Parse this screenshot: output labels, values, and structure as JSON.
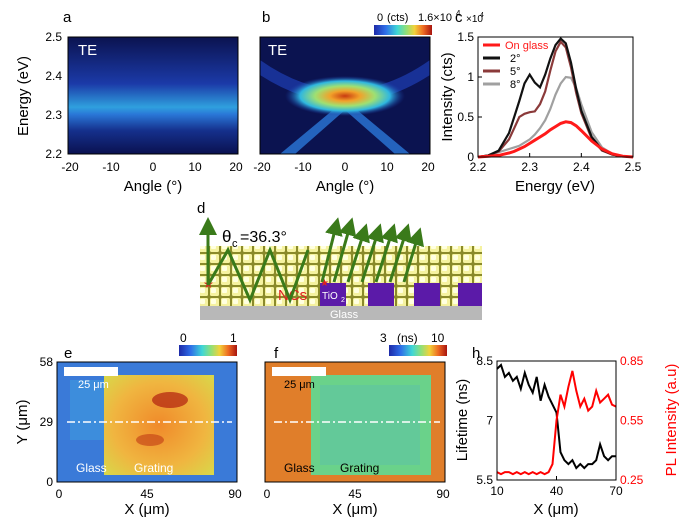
{
  "panel_letters": {
    "a": "a",
    "b": "b",
    "c": "c",
    "d": "d",
    "e": "e",
    "f": "f",
    "h": "h"
  },
  "mode_label": "TE",
  "panel_a": {
    "ylabel": "Energy (eV)",
    "xlabel": "Angle (°)",
    "yticks": [
      "2.5",
      "2.4",
      "2.3",
      "2.2"
    ],
    "xticks": [
      "-20",
      "-10",
      "0",
      "10",
      "20"
    ]
  },
  "panel_b": {
    "xlabel": "Angle (°)",
    "xticks": [
      "-20",
      "-10",
      "0",
      "10",
      "20"
    ],
    "colorbar": {
      "min": "0",
      "unit": "(cts)",
      "max_base": "1.6×10",
      "max_exp": "4"
    }
  },
  "chart_data": [
    {
      "type": "line",
      "panel": "c",
      "xlabel": "Energy (eV)",
      "ylabel": "Intensity (cts)",
      "y_multiplier_base": "×10",
      "y_multiplier_exp": "4",
      "xlim": [
        2.2,
        2.5
      ],
      "ylim": [
        0,
        1.5
      ],
      "xticks": [
        "2.2",
        "2.3",
        "2.4",
        "2.5"
      ],
      "yticks": [
        "0",
        "0.5",
        "1",
        "1.5"
      ],
      "legend_position": "top-left",
      "x": [
        2.2,
        2.22,
        2.24,
        2.26,
        2.27,
        2.28,
        2.29,
        2.3,
        2.31,
        2.32,
        2.33,
        2.34,
        2.35,
        2.36,
        2.37,
        2.38,
        2.39,
        2.4,
        2.42,
        2.44,
        2.46,
        2.48,
        2.5
      ],
      "series": [
        {
          "name": "On glass",
          "color": "#ff1a1a",
          "values": [
            0.0,
            0.01,
            0.02,
            0.05,
            0.07,
            0.1,
            0.13,
            0.17,
            0.21,
            0.25,
            0.29,
            0.34,
            0.38,
            0.42,
            0.44,
            0.43,
            0.39,
            0.33,
            0.2,
            0.1,
            0.04,
            0.01,
            0.0
          ]
        },
        {
          "name": "2°",
          "color": "#111111",
          "values": [
            0.0,
            0.02,
            0.08,
            0.3,
            0.5,
            0.7,
            0.92,
            1.03,
            0.93,
            0.87,
            1.03,
            1.23,
            1.4,
            1.48,
            1.42,
            1.18,
            0.85,
            0.58,
            0.25,
            0.09,
            0.03,
            0.01,
            0.0
          ]
        },
        {
          "name": "5°",
          "color": "#8b3a3a",
          "values": [
            0.0,
            0.02,
            0.07,
            0.22,
            0.36,
            0.5,
            0.54,
            0.56,
            0.57,
            0.66,
            0.82,
            1.08,
            1.32,
            1.44,
            1.37,
            1.12,
            0.8,
            0.55,
            0.23,
            0.08,
            0.03,
            0.01,
            0.0
          ]
        },
        {
          "name": "8°",
          "color": "#a0a0a0",
          "values": [
            0.0,
            0.02,
            0.06,
            0.1,
            0.12,
            0.14,
            0.18,
            0.22,
            0.28,
            0.36,
            0.46,
            0.6,
            0.78,
            0.92,
            1.0,
            0.99,
            0.86,
            0.66,
            0.31,
            0.12,
            0.04,
            0.01,
            0.0
          ]
        }
      ]
    },
    {
      "type": "line",
      "panel": "h",
      "xlabel": "X (μm)",
      "ylabel_left": "Lifetime (ns)",
      "ylabel_right": "PL Intensity (a.u)",
      "xlim": [
        10,
        70
      ],
      "ylim_left": [
        5.5,
        8.5
      ],
      "ylim_right": [
        0.25,
        0.85
      ],
      "xticks": [
        "10",
        "40",
        "70"
      ],
      "yticks_left": [
        "5.5",
        "7",
        "8.5"
      ],
      "yticks_right": [
        "0.25",
        "0.55",
        "0.85"
      ],
      "x": [
        10,
        12,
        14,
        16,
        18,
        20,
        22,
        24,
        26,
        28,
        30,
        32,
        34,
        36,
        38,
        40,
        42,
        44,
        46,
        48,
        50,
        52,
        54,
        56,
        58,
        60,
        62,
        64,
        66,
        68,
        70
      ],
      "series": [
        {
          "name": "Lifetime",
          "axis": "left",
          "color": "#000000",
          "values": [
            8.3,
            8.4,
            8.1,
            8.2,
            8.0,
            8.1,
            7.8,
            8.2,
            7.9,
            7.7,
            8.1,
            7.5,
            7.9,
            7.6,
            7.4,
            7.2,
            6.2,
            6.0,
            5.9,
            6.0,
            5.8,
            5.9,
            5.8,
            5.9,
            5.9,
            6.0,
            6.4,
            6.1,
            6.0,
            6.1,
            6.1
          ]
        },
        {
          "name": "PL Intensity",
          "axis": "right",
          "color": "#ff0000",
          "values": [
            0.29,
            0.28,
            0.29,
            0.29,
            0.28,
            0.29,
            0.28,
            0.29,
            0.28,
            0.29,
            0.28,
            0.29,
            0.28,
            0.29,
            0.33,
            0.55,
            0.68,
            0.62,
            0.72,
            0.8,
            0.7,
            0.62,
            0.66,
            0.6,
            0.62,
            0.7,
            0.64,
            0.66,
            0.68,
            0.63,
            0.62
          ]
        }
      ]
    }
  ],
  "panel_d": {
    "theta_text": "θ",
    "theta_sub": "c",
    "theta_value": "=36.3°",
    "ncs_label": "NCs",
    "tio2_label": "TiO",
    "tio2_sub": "2",
    "glass_label": "Glass"
  },
  "panel_e": {
    "ylabel": "Y (μm)",
    "xlabel": "X (μm)",
    "yticks": [
      "58",
      "29",
      "0"
    ],
    "xticks": [
      "0",
      "45",
      "90"
    ],
    "scalebar": "25 μm",
    "region_left": "Glass",
    "region_right": "Grating",
    "colorbar": {
      "min": "0",
      "max": "1"
    }
  },
  "panel_f": {
    "xlabel": "X (μm)",
    "xticks": [
      "0",
      "45",
      "90"
    ],
    "scalebar": "25 μm",
    "region_left": "Glass",
    "region_right": "Grating",
    "colorbar": {
      "min": "3",
      "unit": "(ns)",
      "max": "10"
    }
  }
}
